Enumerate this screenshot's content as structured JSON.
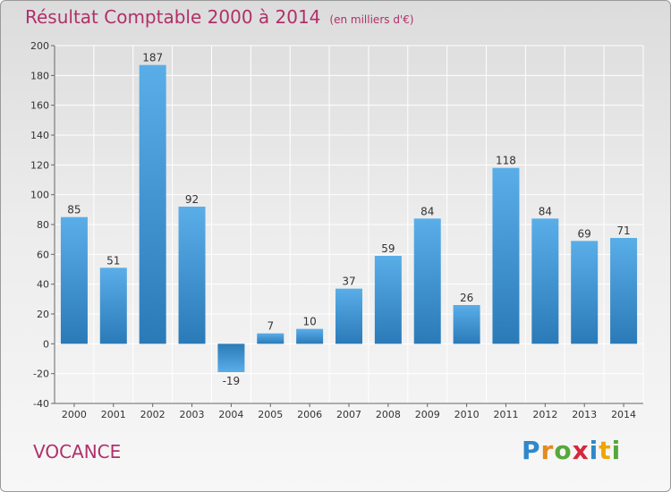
{
  "title": "Résultat Comptable 2000 à 2014",
  "subtitle": "(en milliers d'€)",
  "place": "VOCANCE",
  "logo": {
    "text": "Proxiti",
    "colors": [
      "#2f88c9",
      "#e48a1f",
      "#56a83b",
      "#d7263d",
      "#2f88c9",
      "#f0a500",
      "#56a83b"
    ]
  },
  "colors": {
    "bar_top": "#5aaee8",
    "bar_bottom": "#2a7ab8",
    "title": "#b0306a",
    "grid": "#ffffff"
  },
  "chart_data": {
    "type": "bar",
    "categories": [
      "2000",
      "2001",
      "2002",
      "2003",
      "2004",
      "2005",
      "2006",
      "2007",
      "2008",
      "2009",
      "2010",
      "2011",
      "2012",
      "2013",
      "2014"
    ],
    "values": [
      85,
      51,
      187,
      92,
      -19,
      7,
      10,
      37,
      59,
      84,
      26,
      118,
      84,
      69,
      71
    ],
    "data_labels": [
      "85",
      "51",
      "187",
      "92",
      "-19",
      "7",
      "10",
      "37",
      "59",
      "84",
      "26",
      "118",
      "84",
      "69",
      "71"
    ],
    "title": "Résultat Comptable 2000 à 2014",
    "xlabel": "",
    "ylabel": "",
    "ylim": [
      -40,
      200
    ],
    "yticks": [
      -40,
      -20,
      0,
      20,
      40,
      60,
      80,
      100,
      120,
      140,
      160,
      180,
      200
    ],
    "grid": true,
    "legend": "none"
  }
}
